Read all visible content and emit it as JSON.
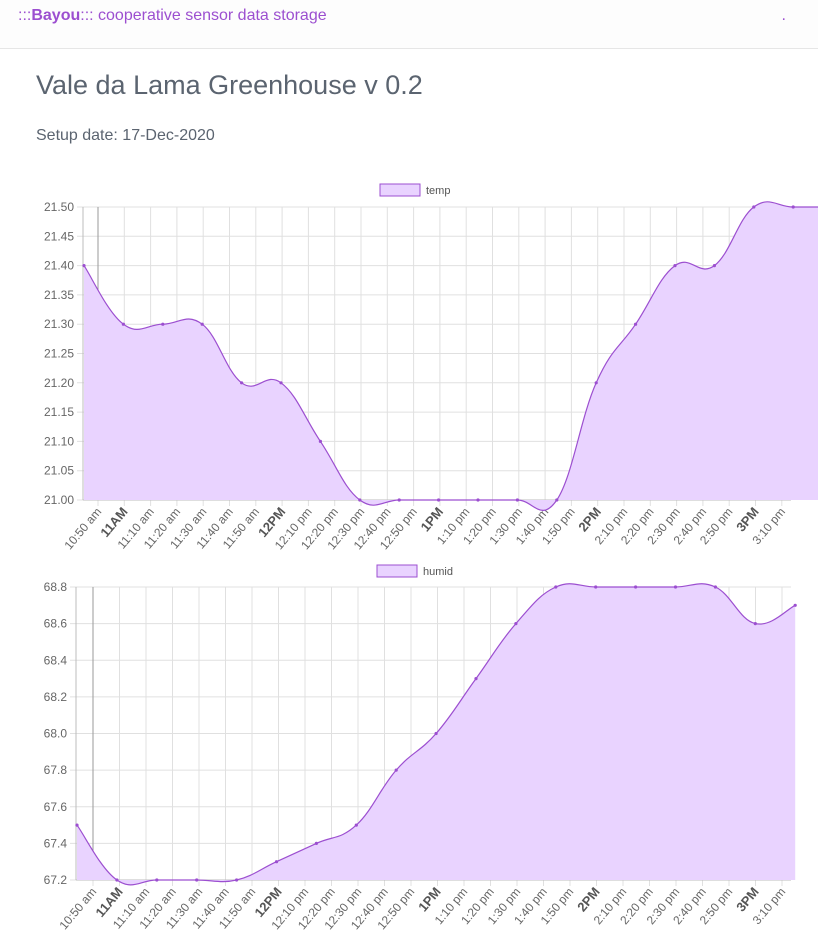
{
  "navbar": {
    "brand_prefix": ":::",
    "brand_name": "Bayou",
    "brand_suffix": "::: cooperative sensor data storage",
    "right_text": "."
  },
  "page": {
    "title": "Vale da Lama Greenhouse v 0.2",
    "setup_date": "Setup date: 17-Dec-2020"
  },
  "colors": {
    "line": "#9c4fd0",
    "fill": "#e9d3ff",
    "grid": "#e0e0e0"
  },
  "chart_data": [
    {
      "type": "area",
      "title": "",
      "legend": [
        "temp"
      ],
      "legend_position": "top",
      "grid": true,
      "x": [
        "10:50 am",
        "11AM",
        "11:10 am",
        "11:20 am",
        "11:30 am",
        "11:40 am",
        "11:50 am",
        "12PM",
        "12:10 pm",
        "12:20 pm",
        "12:30 pm",
        "12:40 pm",
        "12:50 pm",
        "1PM",
        "1:10 pm",
        "1:20 pm",
        "1:30 pm",
        "1:40 pm",
        "1:50 pm",
        "2PM",
        "2:10 pm",
        "2:20 pm",
        "2:30 pm",
        "2:40 pm",
        "2:50 pm",
        "3PM",
        "3:10 pm"
      ],
      "major_ticks": [
        "11AM",
        "12PM",
        "1PM",
        "2PM",
        "3PM"
      ],
      "y_ticks": [
        "21.50",
        "21.45",
        "21.40",
        "21.35",
        "21.30",
        "21.25",
        "21.20",
        "21.15",
        "21.10",
        "21.05",
        "21.00"
      ],
      "ylim": [
        21.0,
        21.5
      ],
      "points": [
        {
          "t": "10:50 am",
          "v": 21.4
        },
        {
          "t": "11:00 am",
          "v": 21.3
        },
        {
          "t": "11:10 am",
          "v": 21.3
        },
        {
          "t": "11:20 am",
          "v": 21.3
        },
        {
          "t": "11:30 am",
          "v": 21.2
        },
        {
          "t": "11:40 am",
          "v": 21.2
        },
        {
          "t": "11:50 am",
          "v": 21.1
        },
        {
          "t": "12:00 pm",
          "v": 21.0
        },
        {
          "t": "12:10 pm",
          "v": 21.0
        },
        {
          "t": "12:20 pm",
          "v": 21.0
        },
        {
          "t": "12:30 pm",
          "v": 21.0
        },
        {
          "t": "12:40 pm",
          "v": 21.0
        },
        {
          "t": "12:50 pm",
          "v": 21.0
        },
        {
          "t": "1:00 pm",
          "v": 21.2
        },
        {
          "t": "1:10 pm",
          "v": 21.3
        },
        {
          "t": "1:20 pm",
          "v": 21.4
        },
        {
          "t": "1:30 pm",
          "v": 21.4
        },
        {
          "t": "1:40 pm",
          "v": 21.5
        },
        {
          "t": "1:50 pm",
          "v": 21.5
        },
        {
          "t": "2:00 pm",
          "v": 21.5
        }
      ]
    },
    {
      "type": "area",
      "title": "",
      "legend": [
        "humid"
      ],
      "legend_position": "top",
      "grid": true,
      "x": [
        "10:50 am",
        "11AM",
        "11:10 am",
        "11:20 am",
        "11:30 am",
        "11:40 am",
        "11:50 am",
        "12PM",
        "12:10 pm",
        "12:20 pm",
        "12:30 pm",
        "12:40 pm",
        "12:50 pm",
        "1PM",
        "1:10 pm",
        "1:20 pm",
        "1:30 pm",
        "1:40 pm",
        "1:50 pm",
        "2PM",
        "2:10 pm",
        "2:20 pm",
        "2:30 pm",
        "2:40 pm",
        "2:50 pm",
        "3PM",
        "3:10 pm"
      ],
      "major_ticks": [
        "11AM",
        "12PM",
        "1PM",
        "2PM",
        "3PM"
      ],
      "y_ticks": [
        "68.8",
        "68.6",
        "68.4",
        "68.2",
        "68.0",
        "67.8",
        "67.6",
        "67.4",
        "67.2"
      ],
      "ylim": [
        67.2,
        68.8
      ],
      "points": [
        {
          "t": "10:50 am",
          "v": 67.5
        },
        {
          "t": "11:00 am",
          "v": 67.2
        },
        {
          "t": "11:10 am",
          "v": 67.2
        },
        {
          "t": "11:20 am",
          "v": 67.2
        },
        {
          "t": "11:30 am",
          "v": 67.2
        },
        {
          "t": "11:40 am",
          "v": 67.3
        },
        {
          "t": "11:50 am",
          "v": 67.4
        },
        {
          "t": "12:00 pm",
          "v": 67.5
        },
        {
          "t": "12:10 pm",
          "v": 67.8
        },
        {
          "t": "12:20 pm",
          "v": 68.0
        },
        {
          "t": "12:30 pm",
          "v": 68.3
        },
        {
          "t": "12:40 pm",
          "v": 68.6
        },
        {
          "t": "12:50 pm",
          "v": 68.8
        },
        {
          "t": "1:00 pm",
          "v": 68.8
        },
        {
          "t": "1:10 pm",
          "v": 68.8
        },
        {
          "t": "1:20 pm",
          "v": 68.8
        },
        {
          "t": "1:30 pm",
          "v": 68.8
        },
        {
          "t": "1:40 pm",
          "v": 68.6
        },
        {
          "t": "1:50 pm",
          "v": 68.7
        }
      ]
    }
  ]
}
